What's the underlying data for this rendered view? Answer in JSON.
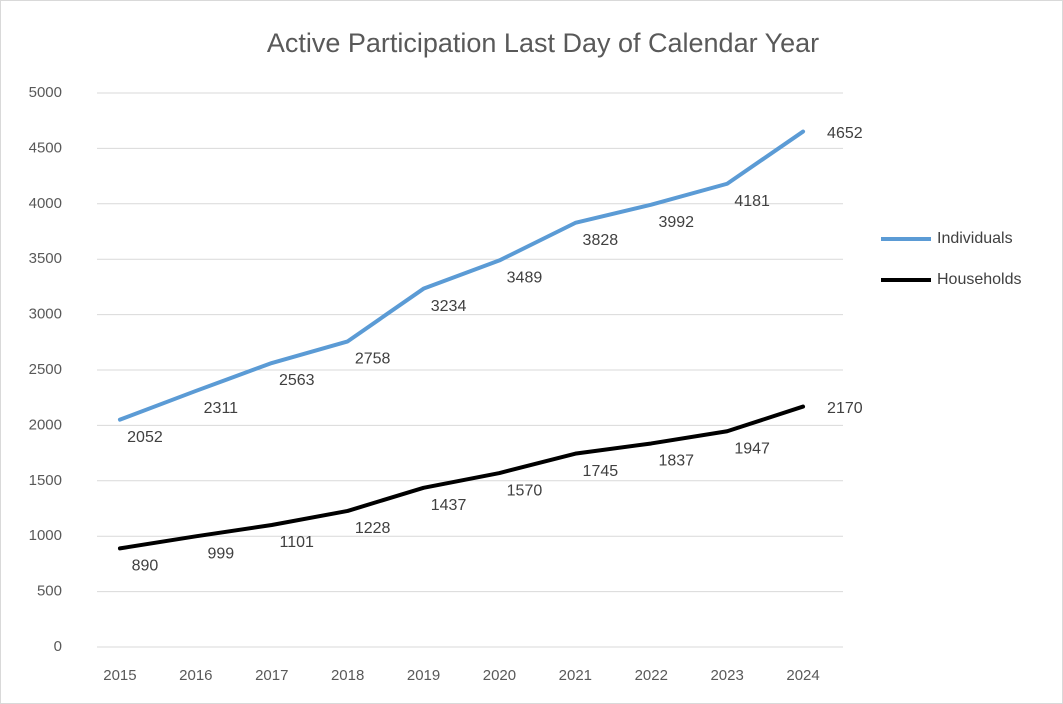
{
  "chart_data": {
    "type": "line",
    "title": "Active Participation Last Day of Calendar Year",
    "categories": [
      "2015",
      "2016",
      "2017",
      "2018",
      "2019",
      "2020",
      "2021",
      "2022",
      "2023",
      "2024"
    ],
    "series": [
      {
        "name": "Individuals",
        "color": "#5b9bd5",
        "values": [
          2052,
          2311,
          2563,
          2758,
          3234,
          3489,
          3828,
          3992,
          4181,
          4652
        ]
      },
      {
        "name": "Households",
        "color": "#000000",
        "values": [
          890,
          999,
          1101,
          1228,
          1437,
          1570,
          1745,
          1837,
          1947,
          2170
        ]
      }
    ],
    "ylim": [
      0,
      5000
    ],
    "yticks": [
      0,
      500,
      1000,
      1500,
      2000,
      2500,
      3000,
      3500,
      4000,
      4500,
      5000
    ],
    "grid": true,
    "legend": "right",
    "data_labels": true
  }
}
